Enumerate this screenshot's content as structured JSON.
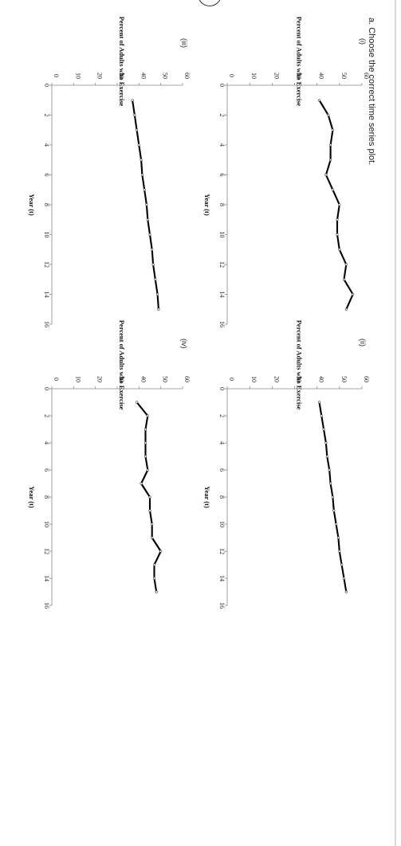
{
  "question": {
    "label": "a. Choose the correct time series plot."
  },
  "chart_data": [
    {
      "type": "line",
      "option_label": "(i)",
      "xlabel": "Year (t)",
      "ylabel": "Percent of Adults who Exercise",
      "xlim": [
        0,
        16
      ],
      "ylim": [
        0,
        60
      ],
      "xticks": [
        0,
        2,
        4,
        6,
        8,
        10,
        12,
        14,
        16
      ],
      "yticks": [
        0,
        10,
        20,
        30,
        40,
        50,
        60
      ],
      "x": [
        1,
        2,
        3,
        4,
        5,
        6,
        7,
        8,
        9,
        10,
        11,
        12,
        13,
        14,
        15
      ],
      "y": [
        41,
        45,
        47,
        46,
        46,
        44,
        47,
        50,
        49,
        49,
        50,
        53,
        52,
        56,
        53
      ]
    },
    {
      "type": "line",
      "option_label": "(ii)",
      "xlabel": "Year (t)",
      "ylabel": "Percent of Adults who Exercise",
      "xlim": [
        0,
        16
      ],
      "ylim": [
        0,
        60
      ],
      "xticks": [
        0,
        2,
        4,
        6,
        8,
        10,
        12,
        14,
        16
      ],
      "yticks": [
        0,
        10,
        20,
        30,
        40,
        50,
        60
      ],
      "x": [
        1,
        2,
        3,
        4,
        5,
        6,
        7,
        8,
        9,
        10,
        11,
        12,
        13,
        14,
        15
      ],
      "y": [
        41,
        42,
        43,
        44,
        44.5,
        45.5,
        46,
        47,
        47.5,
        48.5,
        49.5,
        50,
        51,
        52,
        53
      ]
    },
    {
      "type": "line",
      "option_label": "(iii)",
      "xlabel": "Year (t)",
      "ylabel": "Percent of Adults who Exercise",
      "xlim": [
        0,
        16
      ],
      "ylim": [
        0,
        60
      ],
      "xticks": [
        0,
        2,
        4,
        6,
        8,
        10,
        12,
        14,
        16
      ],
      "yticks": [
        0,
        10,
        20,
        30,
        40,
        50,
        60
      ],
      "x": [
        1,
        2,
        3,
        4,
        5,
        6,
        7,
        8,
        9,
        10,
        11,
        12,
        13,
        14,
        15
      ],
      "y": [
        37,
        38,
        39,
        40,
        41,
        41.5,
        42.5,
        43.5,
        44,
        45,
        46,
        46.5,
        47.5,
        48.5,
        49
      ]
    },
    {
      "type": "line",
      "option_label": "(iv)",
      "xlabel": "Year (t)",
      "ylabel": "Percent of Adults who Exercise",
      "xlim": [
        0,
        16
      ],
      "ylim": [
        0,
        60
      ],
      "xticks": [
        0,
        2,
        4,
        6,
        8,
        10,
        12,
        14,
        16
      ],
      "yticks": [
        0,
        10,
        20,
        30,
        40,
        50,
        60
      ],
      "x": [
        1,
        2,
        3,
        4,
        5,
        6,
        7,
        8,
        9,
        10,
        11,
        12,
        13,
        14,
        15
      ],
      "y": [
        39,
        44,
        43,
        43,
        43,
        44,
        41,
        45,
        45,
        46,
        46,
        50,
        47,
        47,
        48
      ]
    }
  ]
}
